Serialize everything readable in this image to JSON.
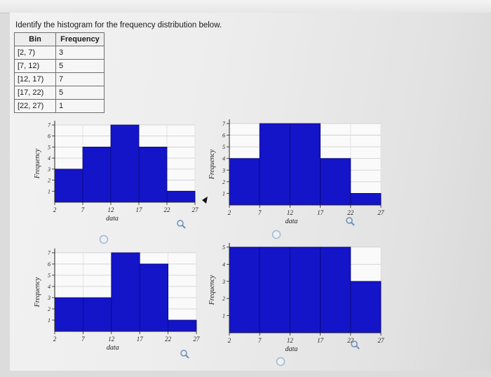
{
  "question": "Identify the histogram for the frequency distribution below.",
  "table": {
    "headers": [
      "Bin",
      "Frequency"
    ],
    "rows": [
      {
        "bin": "[2, 7)",
        "freq": "3"
      },
      {
        "bin": "[7, 12)",
        "freq": "5"
      },
      {
        "bin": "[12, 17)",
        "freq": "7"
      },
      {
        "bin": "[17, 22)",
        "freq": "5"
      },
      {
        "bin": "[22, 27)",
        "freq": "1"
      }
    ]
  },
  "chart_data": [
    {
      "type": "bar",
      "bin_edges": [
        2,
        7,
        12,
        17,
        22,
        27
      ],
      "values": [
        3,
        5,
        7,
        5,
        1
      ],
      "ylim": [
        1,
        7
      ],
      "yticks": [
        "1",
        "2",
        "3",
        "4",
        "5",
        "6",
        "7"
      ],
      "xticks": [
        "2",
        "7",
        "12",
        "17",
        "22",
        "27"
      ],
      "xlabel": "data",
      "ylabel": "Frequency",
      "bar_color": "#1414c8"
    },
    {
      "type": "bar",
      "bin_edges": [
        2,
        7,
        12,
        17,
        22,
        27
      ],
      "values": [
        4,
        7,
        7,
        4,
        1
      ],
      "ylim": [
        1,
        7
      ],
      "yticks": [
        "1",
        "2",
        "3",
        "4",
        "5",
        "6",
        "7"
      ],
      "xticks": [
        "2",
        "7",
        "12",
        "17",
        "22",
        "27"
      ],
      "xlabel": "data",
      "ylabel": "Frequency",
      "bar_color": "#1414c8"
    },
    {
      "type": "bar",
      "bin_edges": [
        2,
        7,
        12,
        17,
        22,
        27
      ],
      "values": [
        3,
        3,
        7,
        6,
        1
      ],
      "ylim": [
        1,
        7
      ],
      "yticks": [
        "1",
        "2",
        "3",
        "4",
        "5",
        "6",
        "7"
      ],
      "xticks": [
        "2",
        "7",
        "12",
        "17",
        "22",
        "27"
      ],
      "xlabel": "data",
      "ylabel": "Frequency",
      "bar_color": "#1414c8"
    },
    {
      "type": "bar",
      "bin_edges": [
        2,
        7,
        12,
        17,
        22,
        27
      ],
      "values": [
        5,
        5,
        5,
        5,
        3
      ],
      "ylim": [
        1,
        5
      ],
      "yticks": [
        "1",
        "2",
        "3",
        "4",
        "5"
      ],
      "xticks": [
        "2",
        "7",
        "12",
        "17",
        "22",
        "27"
      ],
      "xlabel": "data",
      "ylabel": "Frequency",
      "bar_color": "#1414c8"
    }
  ],
  "icons": {
    "zoom": "magnifier-icon",
    "select": "radio-circle-icon"
  }
}
